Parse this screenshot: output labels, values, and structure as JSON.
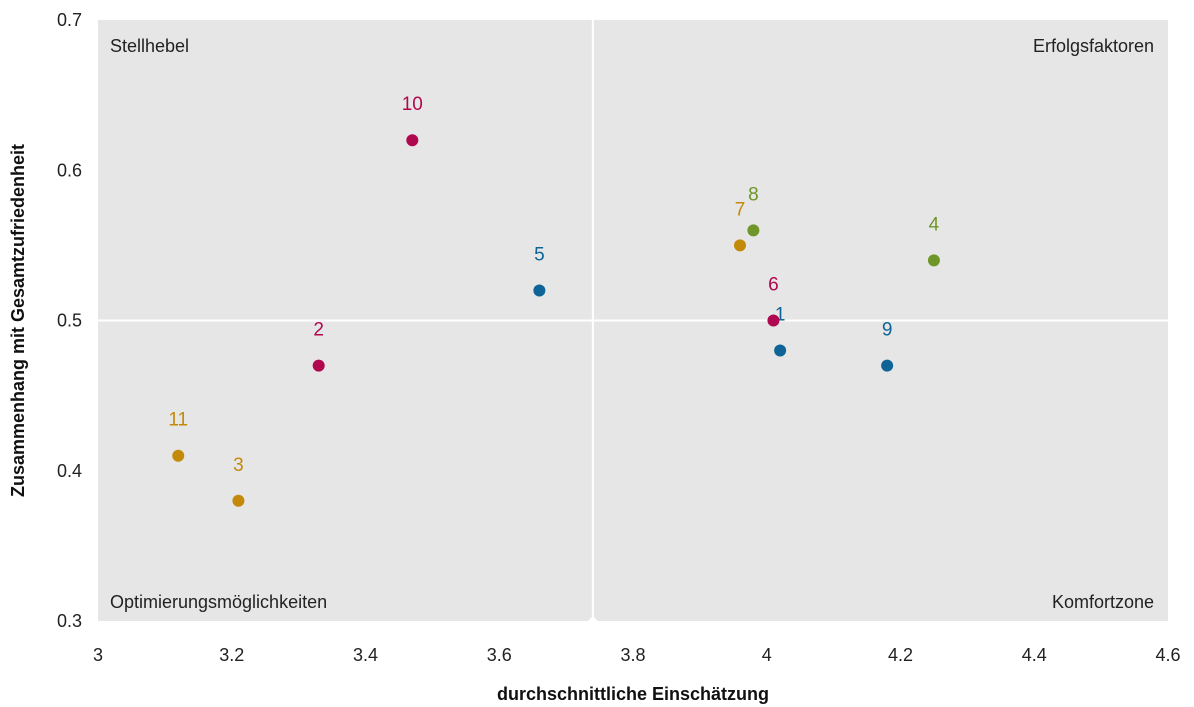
{
  "chart_data": {
    "type": "scatter",
    "xlabel": "durchschnittliche Einschätzung",
    "ylabel": "Zusammenhang mit Gesamtzufriedenheit",
    "xlim": [
      3,
      4.6
    ],
    "ylim": [
      0.3,
      0.7
    ],
    "x_ticks": [
      "3",
      "3.2",
      "3.4",
      "3.6",
      "3.8",
      "4",
      "4.2",
      "4.4",
      "4.6"
    ],
    "y_ticks": [
      "0.3",
      "0.4",
      "0.5",
      "0.6",
      "0.7"
    ],
    "grid": false,
    "reference_lines": {
      "x": 3.74,
      "y": 0.5
    },
    "quadrants": {
      "top_left": "Stellhebel",
      "top_right": "Erfolgsfaktoren",
      "bottom_left": "Optimierungsmöglichkeiten",
      "bottom_right": "Komfortzone"
    },
    "colors": {
      "background": "#e6e6e6",
      "blue": "#0e6496",
      "magenta": "#b0084e",
      "gold": "#c38a0a",
      "green": "#6e9628"
    },
    "points": [
      {
        "label": "1",
        "x": 4.02,
        "y": 0.48,
        "color": "#0e6496"
      },
      {
        "label": "2",
        "x": 3.33,
        "y": 0.47,
        "color": "#b0084e"
      },
      {
        "label": "3",
        "x": 3.21,
        "y": 0.38,
        "color": "#c38a0a"
      },
      {
        "label": "4",
        "x": 4.25,
        "y": 0.54,
        "color": "#6e9628"
      },
      {
        "label": "5",
        "x": 3.66,
        "y": 0.52,
        "color": "#0e6496"
      },
      {
        "label": "6",
        "x": 4.01,
        "y": 0.5,
        "color": "#b0084e"
      },
      {
        "label": "7",
        "x": 3.96,
        "y": 0.55,
        "color": "#c38a0a"
      },
      {
        "label": "8",
        "x": 3.98,
        "y": 0.56,
        "color": "#6e9628"
      },
      {
        "label": "9",
        "x": 4.18,
        "y": 0.47,
        "color": "#0e6496"
      },
      {
        "label": "10",
        "x": 3.47,
        "y": 0.62,
        "color": "#b0084e"
      },
      {
        "label": "11",
        "x": 3.12,
        "y": 0.41,
        "color": "#c38a0a"
      }
    ]
  }
}
